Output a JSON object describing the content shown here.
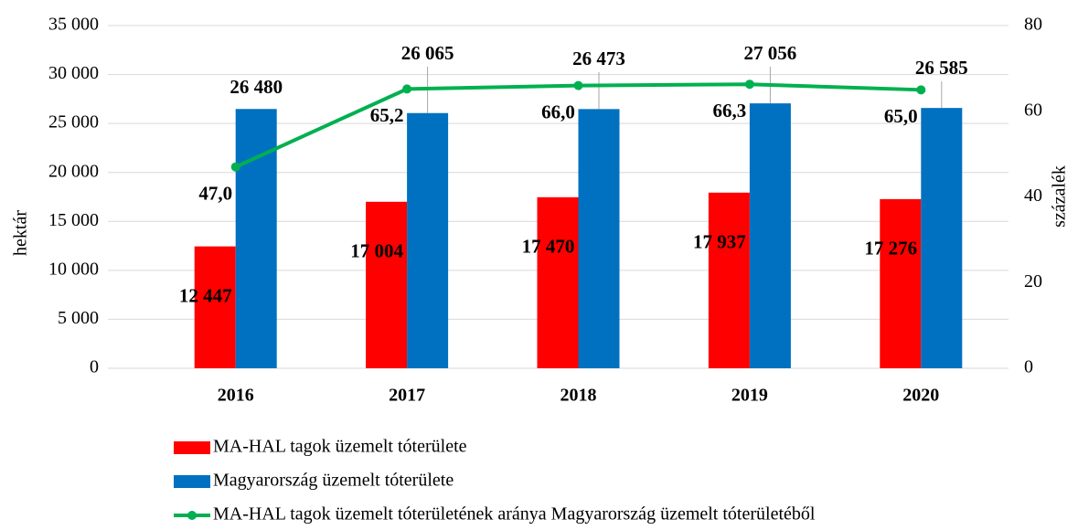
{
  "chart_data": {
    "type": "bar",
    "categories": [
      "2016",
      "2017",
      "2018",
      "2019",
      "2020"
    ],
    "series": [
      {
        "name": "MA-HAL tagok üzemelt tóterülete",
        "type": "bar",
        "color": "#ff0000",
        "values": [
          12447,
          17004,
          17470,
          17937,
          17276
        ],
        "value_labels": [
          "12 447",
          "17 004",
          "17 470",
          "17 937",
          "17 276"
        ]
      },
      {
        "name": "Magyarország üzemelt tóterülete",
        "type": "bar",
        "color": "#0070c0",
        "values": [
          26480,
          26065,
          26473,
          27056,
          26585
        ],
        "value_labels": [
          "26 480",
          "26 065",
          "26 473",
          "27 056",
          "26 585"
        ]
      },
      {
        "name": "MA-HAL tagok üzemelt tóterületének aránya Magyarország üzemelt tóterületéből",
        "type": "line",
        "axis": "y2",
        "color": "#00b050",
        "values": [
          47.0,
          65.2,
          66.0,
          66.3,
          65.0
        ],
        "value_labels": [
          "47,0",
          "65,2",
          "66,0",
          "66,3",
          "65,0"
        ]
      }
    ],
    "ylabel": "hektár",
    "y2label": "százalék",
    "ylim": [
      0,
      35000
    ],
    "yticks": [
      0,
      {
        "value": 5000,
        "label": "5 000"
      },
      {
        "value": 10000,
        "label": "10 000"
      },
      {
        "value": 15000,
        "label": "15 000"
      },
      {
        "value": 20000,
        "label": "20 000"
      },
      {
        "value": 25000,
        "label": "25 000"
      },
      {
        "value": 30000,
        "label": "30 000"
      },
      {
        "value": 35000,
        "label": "35 000"
      }
    ],
    "y2lim": [
      0,
      80
    ],
    "y2ticks": [
      0,
      20,
      40,
      60,
      80
    ],
    "grid": true,
    "legend": "bottom"
  }
}
